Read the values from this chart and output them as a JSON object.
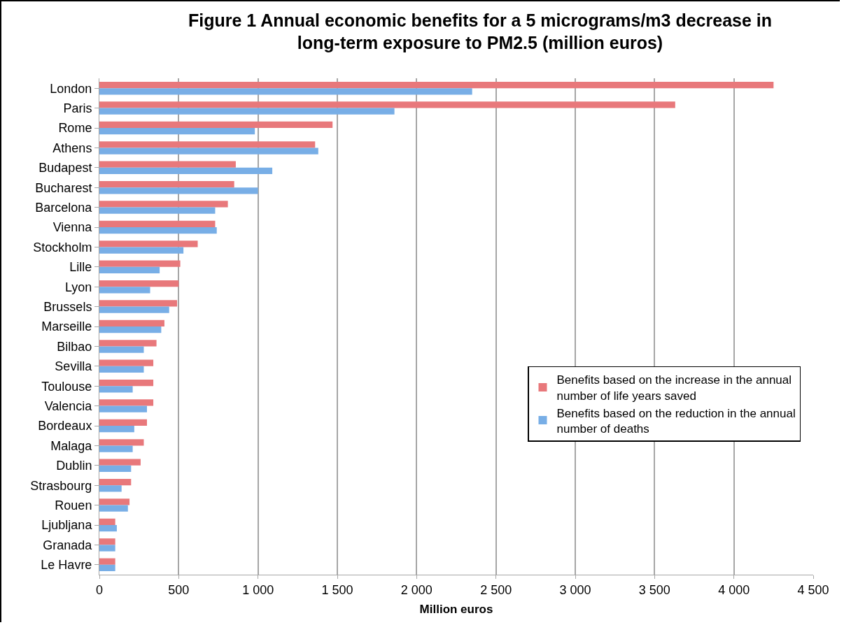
{
  "chart_data": {
    "type": "bar",
    "orientation": "horizontal",
    "title": "Figure 1 Annual economic benefits for a 5 micrograms/m3 decrease in long-term exposure to PM2.5 (million euros)",
    "xlabel": "Million euros",
    "categories": [
      "London",
      "Paris",
      "Rome",
      "Athens",
      "Budapest",
      "Bucharest",
      "Barcelona",
      "Vienna",
      "Stockholm",
      "Lille",
      "Lyon",
      "Brussels",
      "Marseille",
      "Bilbao",
      "Sevilla",
      "Toulouse",
      "Valencia",
      "Bordeaux",
      "Malaga",
      "Dublin",
      "Strasbourg",
      "Rouen",
      "Ljubljana",
      "Granada",
      "Le Havre"
    ],
    "series": [
      {
        "name": "Benefits based on the increase in the annual number of life years saved",
        "color": "#e8787b",
        "values": [
          4250,
          3630,
          1470,
          1360,
          860,
          850,
          810,
          730,
          620,
          510,
          500,
          490,
          410,
          360,
          340,
          340,
          340,
          300,
          280,
          260,
          200,
          190,
          100,
          100,
          100
        ]
      },
      {
        "name": "Benefits based on the reduction in the annual number of deaths",
        "color": "#78aee6",
        "values": [
          2350,
          1860,
          980,
          1380,
          1090,
          1000,
          730,
          740,
          530,
          380,
          320,
          440,
          390,
          280,
          280,
          210,
          300,
          220,
          210,
          200,
          140,
          180,
          110,
          100,
          100
        ]
      }
    ],
    "xlim": [
      0,
      4500
    ],
    "xticks": [
      0,
      500,
      {
        "value": 1000,
        "label": "1 000"
      },
      {
        "value": 1500,
        "label": "1 500"
      },
      {
        "value": 2000,
        "label": "2 000"
      },
      {
        "value": 2500,
        "label": "2 500"
      },
      {
        "value": 3000,
        "label": "3 000"
      },
      {
        "value": 3500,
        "label": "3 500"
      },
      {
        "value": 4000,
        "label": "4 000"
      },
      {
        "value": 4500,
        "label": "4 500"
      }
    ],
    "grid": "x",
    "legend": "right"
  }
}
